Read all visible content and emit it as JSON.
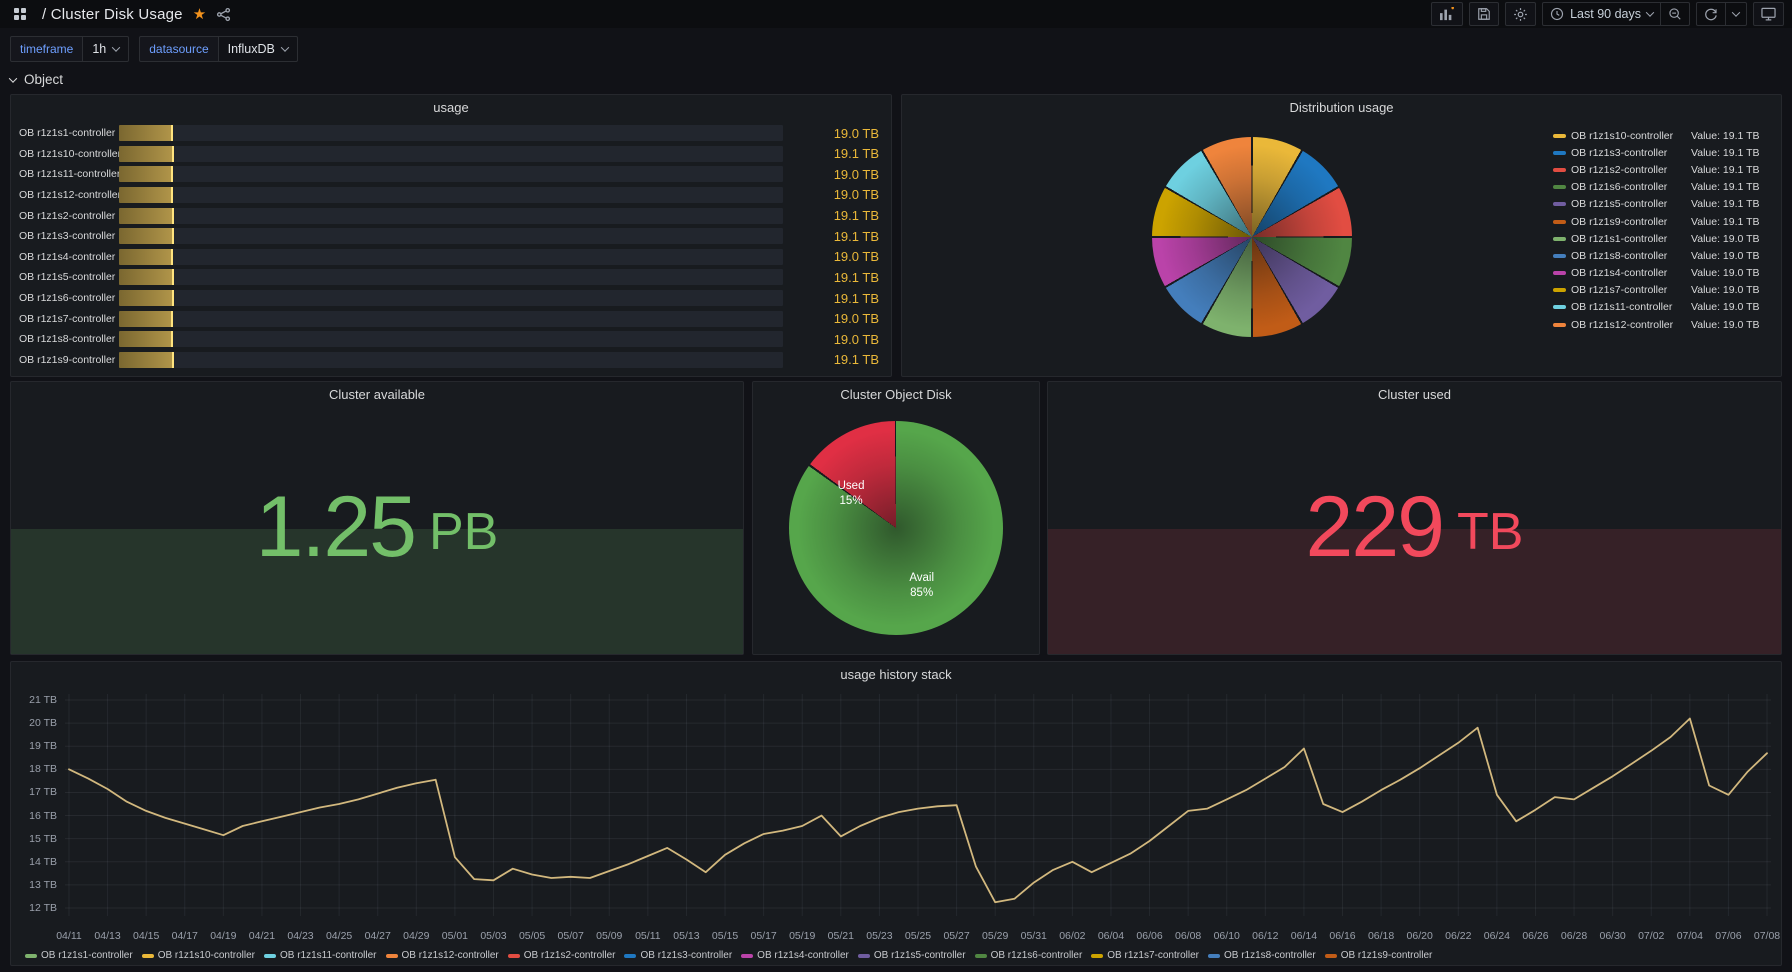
{
  "header": {
    "breadcrumb": "/ Cluster Disk Usage",
    "time_range": "Last 90 days",
    "star_color": "#f2921d"
  },
  "submenu": {
    "variables": [
      {
        "label": "timeframe",
        "value": "1h"
      },
      {
        "label": "datasource",
        "value": "InfluxDB"
      }
    ],
    "label_color": "#6e9fff"
  },
  "row": {
    "label": "Object"
  },
  "panels": {
    "usage": {
      "title": "usage"
    },
    "distribution": {
      "title": "Distribution usage"
    },
    "available": {
      "title": "Cluster available",
      "value": "1.25",
      "unit": "PB",
      "color": "#73BF69",
      "fill_color": "rgba(115,191,105,0.16)"
    },
    "object_disk": {
      "title": "Cluster Object Disk"
    },
    "used": {
      "title": "Cluster used",
      "value": "229",
      "unit": "TB",
      "color": "#F2495C",
      "fill_color": "rgba(242,73,92,0.14)"
    },
    "history": {
      "title": "usage history stack"
    }
  },
  "chart_data": [
    {
      "id": "usage_bars",
      "type": "bar",
      "orientation": "horizontal",
      "unit": "TB",
      "max": 232,
      "bar_color": "#ae913f",
      "cap_color": "#ffe37e",
      "value_color": "#EAB839",
      "rows": [
        {
          "name": "OB r1z1s1-controller",
          "value": 19.0,
          "display": "19.0 TB"
        },
        {
          "name": "OB r1z1s10-controller",
          "value": 19.1,
          "display": "19.1 TB"
        },
        {
          "name": "OB r1z1s11-controller",
          "value": 19.0,
          "display": "19.0 TB"
        },
        {
          "name": "OB r1z1s12-controller",
          "value": 19.0,
          "display": "19.0 TB"
        },
        {
          "name": "OB r1z1s2-controller",
          "value": 19.1,
          "display": "19.1 TB"
        },
        {
          "name": "OB r1z1s3-controller",
          "value": 19.1,
          "display": "19.1 TB"
        },
        {
          "name": "OB r1z1s4-controller",
          "value": 19.0,
          "display": "19.0 TB"
        },
        {
          "name": "OB r1z1s5-controller",
          "value": 19.1,
          "display": "19.1 TB"
        },
        {
          "name": "OB r1z1s6-controller",
          "value": 19.1,
          "display": "19.1 TB"
        },
        {
          "name": "OB r1z1s7-controller",
          "value": 19.0,
          "display": "19.0 TB"
        },
        {
          "name": "OB r1z1s8-controller",
          "value": 19.0,
          "display": "19.0 TB"
        },
        {
          "name": "OB r1z1s9-controller",
          "value": 19.1,
          "display": "19.1 TB"
        }
      ]
    },
    {
      "id": "distribution_pie",
      "type": "pie",
      "border_color": "#181b1f",
      "slices": [
        {
          "name": "OB r1z1s10-controller",
          "value": 19.1,
          "display": "Value: 19.1 TB",
          "color": "#EAB839"
        },
        {
          "name": "OB r1z1s3-controller",
          "value": 19.1,
          "display": "Value: 19.1 TB",
          "color": "#1F78C1"
        },
        {
          "name": "OB r1z1s2-controller",
          "value": 19.1,
          "display": "Value: 19.1 TB",
          "color": "#E24D42"
        },
        {
          "name": "OB r1z1s6-controller",
          "value": 19.1,
          "display": "Value: 19.1 TB",
          "color": "#508642"
        },
        {
          "name": "OB r1z1s5-controller",
          "value": 19.1,
          "display": "Value: 19.1 TB",
          "color": "#705DA0"
        },
        {
          "name": "OB r1z1s9-controller",
          "value": 19.1,
          "display": "Value: 19.1 TB",
          "color": "#C15C17"
        },
        {
          "name": "OB r1z1s1-controller",
          "value": 19.0,
          "display": "Value: 19.0 TB",
          "color": "#7EB26D"
        },
        {
          "name": "OB r1z1s8-controller",
          "value": 19.0,
          "display": "Value: 19.0 TB",
          "color": "#447EBC"
        },
        {
          "name": "OB r1z1s4-controller",
          "value": 19.0,
          "display": "Value: 19.0 TB",
          "color": "#BA43A9"
        },
        {
          "name": "OB r1z1s7-controller",
          "value": 19.0,
          "display": "Value: 19.0 TB",
          "color": "#CCA300"
        },
        {
          "name": "OB r1z1s11-controller",
          "value": 19.0,
          "display": "Value: 19.0 TB",
          "color": "#6ED0E0"
        },
        {
          "name": "OB r1z1s12-controller",
          "value": 19.0,
          "display": "Value: 19.0 TB",
          "color": "#EF843C"
        }
      ]
    },
    {
      "id": "object_disk_pie",
      "type": "pie",
      "slices": [
        {
          "name": "Avail",
          "pct": 85,
          "pct_label": "85%",
          "color": "#56A64B"
        },
        {
          "name": "Used",
          "pct": 15,
          "pct_label": "15%",
          "color": "#E02F44"
        }
      ]
    },
    {
      "id": "usage_history",
      "type": "line",
      "title": "usage history stack",
      "ylim": [
        12,
        21
      ],
      "unit": "TB",
      "grid": true,
      "legend_position": "bottom",
      "line_color": "#d2b87e",
      "y_ticks": [
        "21 TB",
        "20 TB",
        "19 TB",
        "18 TB",
        "17 TB",
        "16 TB",
        "15 TB",
        "14 TB",
        "13 TB",
        "12 TB"
      ],
      "x_ticks": [
        "04/11",
        "04/13",
        "04/15",
        "04/17",
        "04/19",
        "04/21",
        "04/23",
        "04/25",
        "04/27",
        "04/29",
        "05/01",
        "05/03",
        "05/05",
        "05/07",
        "05/09",
        "05/11",
        "05/13",
        "05/15",
        "05/17",
        "05/19",
        "05/21",
        "05/23",
        "05/25",
        "05/27",
        "05/29",
        "05/31",
        "06/02",
        "06/04",
        "06/06",
        "06/08",
        "06/10",
        "06/12",
        "06/14",
        "06/16",
        "06/18",
        "06/20",
        "06/22",
        "06/24",
        "06/26",
        "06/28",
        "06/30",
        "07/02",
        "07/04",
        "07/06",
        "07/08"
      ],
      "values_unit": "TB (one point per day, 04/11 through 07/08)",
      "values": [
        18.0,
        17.6,
        17.15,
        16.6,
        16.2,
        15.9,
        15.65,
        15.4,
        15.15,
        15.55,
        15.75,
        15.95,
        16.15,
        16.35,
        16.5,
        16.7,
        16.95,
        17.2,
        17.4,
        17.55,
        14.2,
        13.25,
        13.2,
        13.7,
        13.45,
        13.3,
        13.35,
        13.3,
        13.6,
        13.9,
        14.25,
        14.6,
        14.1,
        13.55,
        14.3,
        14.8,
        15.2,
        15.35,
        15.55,
        16.0,
        15.1,
        15.55,
        15.9,
        16.15,
        16.3,
        16.4,
        16.45,
        13.8,
        12.25,
        12.4,
        13.1,
        13.65,
        14.0,
        13.55,
        13.95,
        14.35,
        14.9,
        15.55,
        16.2,
        16.3,
        16.7,
        17.1,
        17.6,
        18.1,
        18.9,
        16.5,
        16.15,
        16.6,
        17.1,
        17.55,
        18.05,
        18.6,
        19.15,
        19.8,
        16.9,
        15.75,
        16.25,
        16.8,
        16.7,
        17.2,
        17.7,
        18.25,
        18.8,
        19.4,
        20.2,
        17.3,
        16.9,
        17.9,
        18.7
      ],
      "legend": [
        {
          "name": "OB r1z1s1-controller",
          "color": "#7EB26D"
        },
        {
          "name": "OB r1z1s10-controller",
          "color": "#EAB839"
        },
        {
          "name": "OB r1z1s11-controller",
          "color": "#6ED0E0"
        },
        {
          "name": "OB r1z1s12-controller",
          "color": "#EF843C"
        },
        {
          "name": "OB r1z1s2-controller",
          "color": "#E24D42"
        },
        {
          "name": "OB r1z1s3-controller",
          "color": "#1F78C1"
        },
        {
          "name": "OB r1z1s4-controller",
          "color": "#BA43A9"
        },
        {
          "name": "OB r1z1s5-controller",
          "color": "#705DA0"
        },
        {
          "name": "OB r1z1s6-controller",
          "color": "#508642"
        },
        {
          "name": "OB r1z1s7-controller",
          "color": "#CCA300"
        },
        {
          "name": "OB r1z1s8-controller",
          "color": "#447EBC"
        },
        {
          "name": "OB r1z1s9-controller",
          "color": "#C15C17"
        }
      ]
    }
  ]
}
